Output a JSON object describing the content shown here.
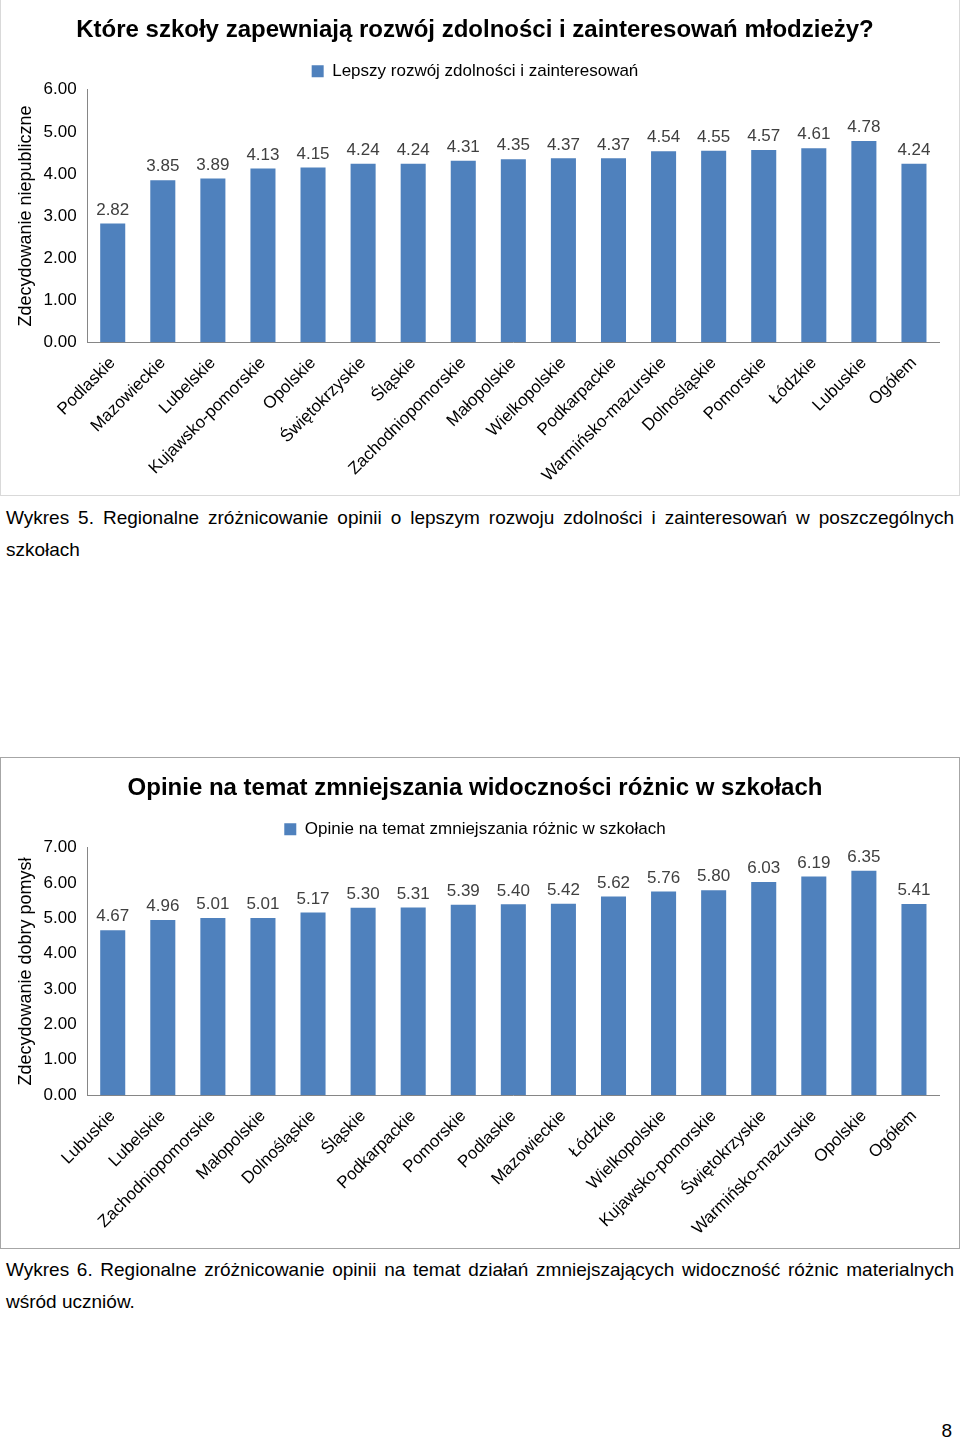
{
  "chart_data": [
    {
      "type": "bar",
      "title": "Które szkoły zapewniają rozwój zdolności i zainteresowań młodzieży?",
      "y_label": "Zdecydowanie niepubliczne",
      "caption": "Wykres 5. Regionalne zróżnicowanie opinii o lepszym rozwoju zdolności i zainteresowań w poszczególnych szkołach",
      "categories": [
        "Podlaskie",
        "Mazowieckie",
        "Lubelskie",
        "Kujawsko-pomorskie",
        "Opolskie",
        "Świętokrzyskie",
        "Śląskie",
        "Zachodniopomorskie",
        "Małopolskie",
        "Wielkopolskie",
        "Podkarpackie",
        "Warmińsko-mazurskie",
        "Dolnośląskie",
        "Pomorskie",
        "Łódzkie",
        "Lubuskie",
        "Ogółem"
      ],
      "series": [
        {
          "name": "Lepszy rozwój zdolności i zainteresowań",
          "color": "#4f81bd",
          "values": [
            2.82,
            3.85,
            3.89,
            4.13,
            4.15,
            4.24,
            4.24,
            4.31,
            4.35,
            4.37,
            4.37,
            4.54,
            4.55,
            4.57,
            4.61,
            4.78,
            4.24
          ],
          "value_labels": [
            "2.82",
            "3.85",
            "3.89",
            "4.13",
            "4.15",
            "4.24",
            "4.24",
            "4.31",
            "4.35",
            "4.37",
            "4.37",
            "4.54",
            "4.55",
            "4.57",
            "4.61",
            "4.78",
            "4.24"
          ]
        }
      ],
      "ylim": [
        0,
        6
      ],
      "yticks": [
        {
          "value": 0,
          "label": "0.00"
        },
        {
          "value": 1,
          "label": "1.00"
        },
        {
          "value": 2,
          "label": "2.00"
        },
        {
          "value": 3,
          "label": "3.00"
        },
        {
          "value": 4,
          "label": "4.00"
        },
        {
          "value": 5,
          "label": "5.00"
        },
        {
          "value": 6,
          "label": "6.00"
        }
      ],
      "grid": false,
      "legend": "top",
      "data_labels": true
    },
    {
      "type": "bar",
      "title": "Opinie na temat zmniejszania widoczności różnic w szkołach",
      "y_label": "Zdecydowanie dobry pomysł",
      "caption": "Wykres 6. Regionalne zróżnicowanie opinii na temat działań zmniejszających widoczność różnic materialnych wśród uczniów.",
      "categories": [
        "Lubuskie",
        "Lubelskie",
        "Zachodniopomorskie",
        "Małopolskie",
        "Dolnośląskie",
        "Śląskie",
        "Podkarpackie",
        "Pomorskie",
        "Podlaskie",
        "Mazowieckie",
        "Łódzkie",
        "Wielkopolskie",
        "Kujawsko-pomorskie",
        "Świętokrzyskie",
        "Warmińsko-mazurskie",
        "Opolskie",
        "Ogółem"
      ],
      "series": [
        {
          "name": "Opinie na temat zmniejszania różnic w szkołach",
          "color": "#4f81bd",
          "values": [
            4.67,
            4.96,
            5.01,
            5.01,
            5.17,
            5.3,
            5.31,
            5.39,
            5.4,
            5.42,
            5.62,
            5.76,
            5.8,
            6.03,
            6.19,
            6.35,
            5.41
          ],
          "value_labels": [
            "4.67",
            "4.96",
            "5.01",
            "5.01",
            "5.17",
            "5.30",
            "5.31",
            "5.39",
            "5.40",
            "5.42",
            "5.62",
            "5.76",
            "5.80",
            "6.03",
            "6.19",
            "6.35",
            "5.41"
          ]
        }
      ],
      "ylim": [
        0,
        7
      ],
      "yticks": [
        {
          "value": 0,
          "label": "0.00"
        },
        {
          "value": 1,
          "label": "1.00"
        },
        {
          "value": 2,
          "label": "2.00"
        },
        {
          "value": 3,
          "label": "3.00"
        },
        {
          "value": 4,
          "label": "4.00"
        },
        {
          "value": 5,
          "label": "5.00"
        },
        {
          "value": 6,
          "label": "6.00"
        },
        {
          "value": 7,
          "label": "7.00"
        }
      ],
      "grid": false,
      "legend": "top",
      "data_labels": true
    }
  ],
  "page_number": "8"
}
